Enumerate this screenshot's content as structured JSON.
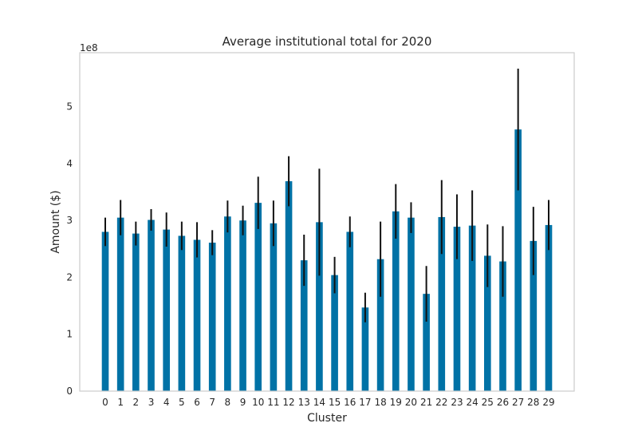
{
  "chart_data": {
    "type": "bar",
    "title": "Average institutional total for 2020",
    "xlabel": "Cluster",
    "ylabel": "Amount ($)",
    "y_multiplier_label": "1e8",
    "y_scale": 100000000,
    "ylim": [
      0,
      5.95
    ],
    "yticks": [
      0,
      1,
      2,
      3,
      4,
      5
    ],
    "grid": false,
    "categories": [
      "0",
      "1",
      "2",
      "3",
      "4",
      "5",
      "6",
      "7",
      "8",
      "9",
      "10",
      "11",
      "12",
      "13",
      "14",
      "15",
      "16",
      "17",
      "18",
      "19",
      "20",
      "21",
      "22",
      "23",
      "24",
      "25",
      "26",
      "27",
      "28",
      "29"
    ],
    "series": [
      {
        "color": "#0072a6",
        "values": [
          2.8,
          3.05,
          2.77,
          3.01,
          2.84,
          2.73,
          2.66,
          2.61,
          3.07,
          3.0,
          3.31,
          2.95,
          3.69,
          2.3,
          2.97,
          2.04,
          2.8,
          1.47,
          2.32,
          3.16,
          3.05,
          1.71,
          3.06,
          2.89,
          2.91,
          2.38,
          2.28,
          4.6,
          2.64,
          2.92
        ],
        "error": [
          [
            0.25,
            0.25
          ],
          [
            0.31,
            0.31
          ],
          [
            0.21,
            0.21
          ],
          [
            0.19,
            0.19
          ],
          [
            0.3,
            0.3
          ],
          [
            0.25,
            0.25
          ],
          [
            0.31,
            0.31
          ],
          [
            0.22,
            0.22
          ],
          [
            0.28,
            0.28
          ],
          [
            0.26,
            0.26
          ],
          [
            0.46,
            0.46
          ],
          [
            0.4,
            0.4
          ],
          [
            0.44,
            0.44
          ],
          [
            0.45,
            0.45
          ],
          [
            0.94,
            0.94
          ],
          [
            0.32,
            0.32
          ],
          [
            0.27,
            0.27
          ],
          [
            0.26,
            0.26
          ],
          [
            0.66,
            0.66
          ],
          [
            0.48,
            0.48
          ],
          [
            0.27,
            0.27
          ],
          [
            0.49,
            0.49
          ],
          [
            0.65,
            0.65
          ],
          [
            0.57,
            0.57
          ],
          [
            0.62,
            0.62
          ],
          [
            0.55,
            0.55
          ],
          [
            0.62,
            0.62
          ],
          [
            1.07,
            1.07
          ],
          [
            0.6,
            0.6
          ],
          [
            0.44,
            0.44
          ]
        ],
        "error_color": "#111111"
      }
    ]
  }
}
